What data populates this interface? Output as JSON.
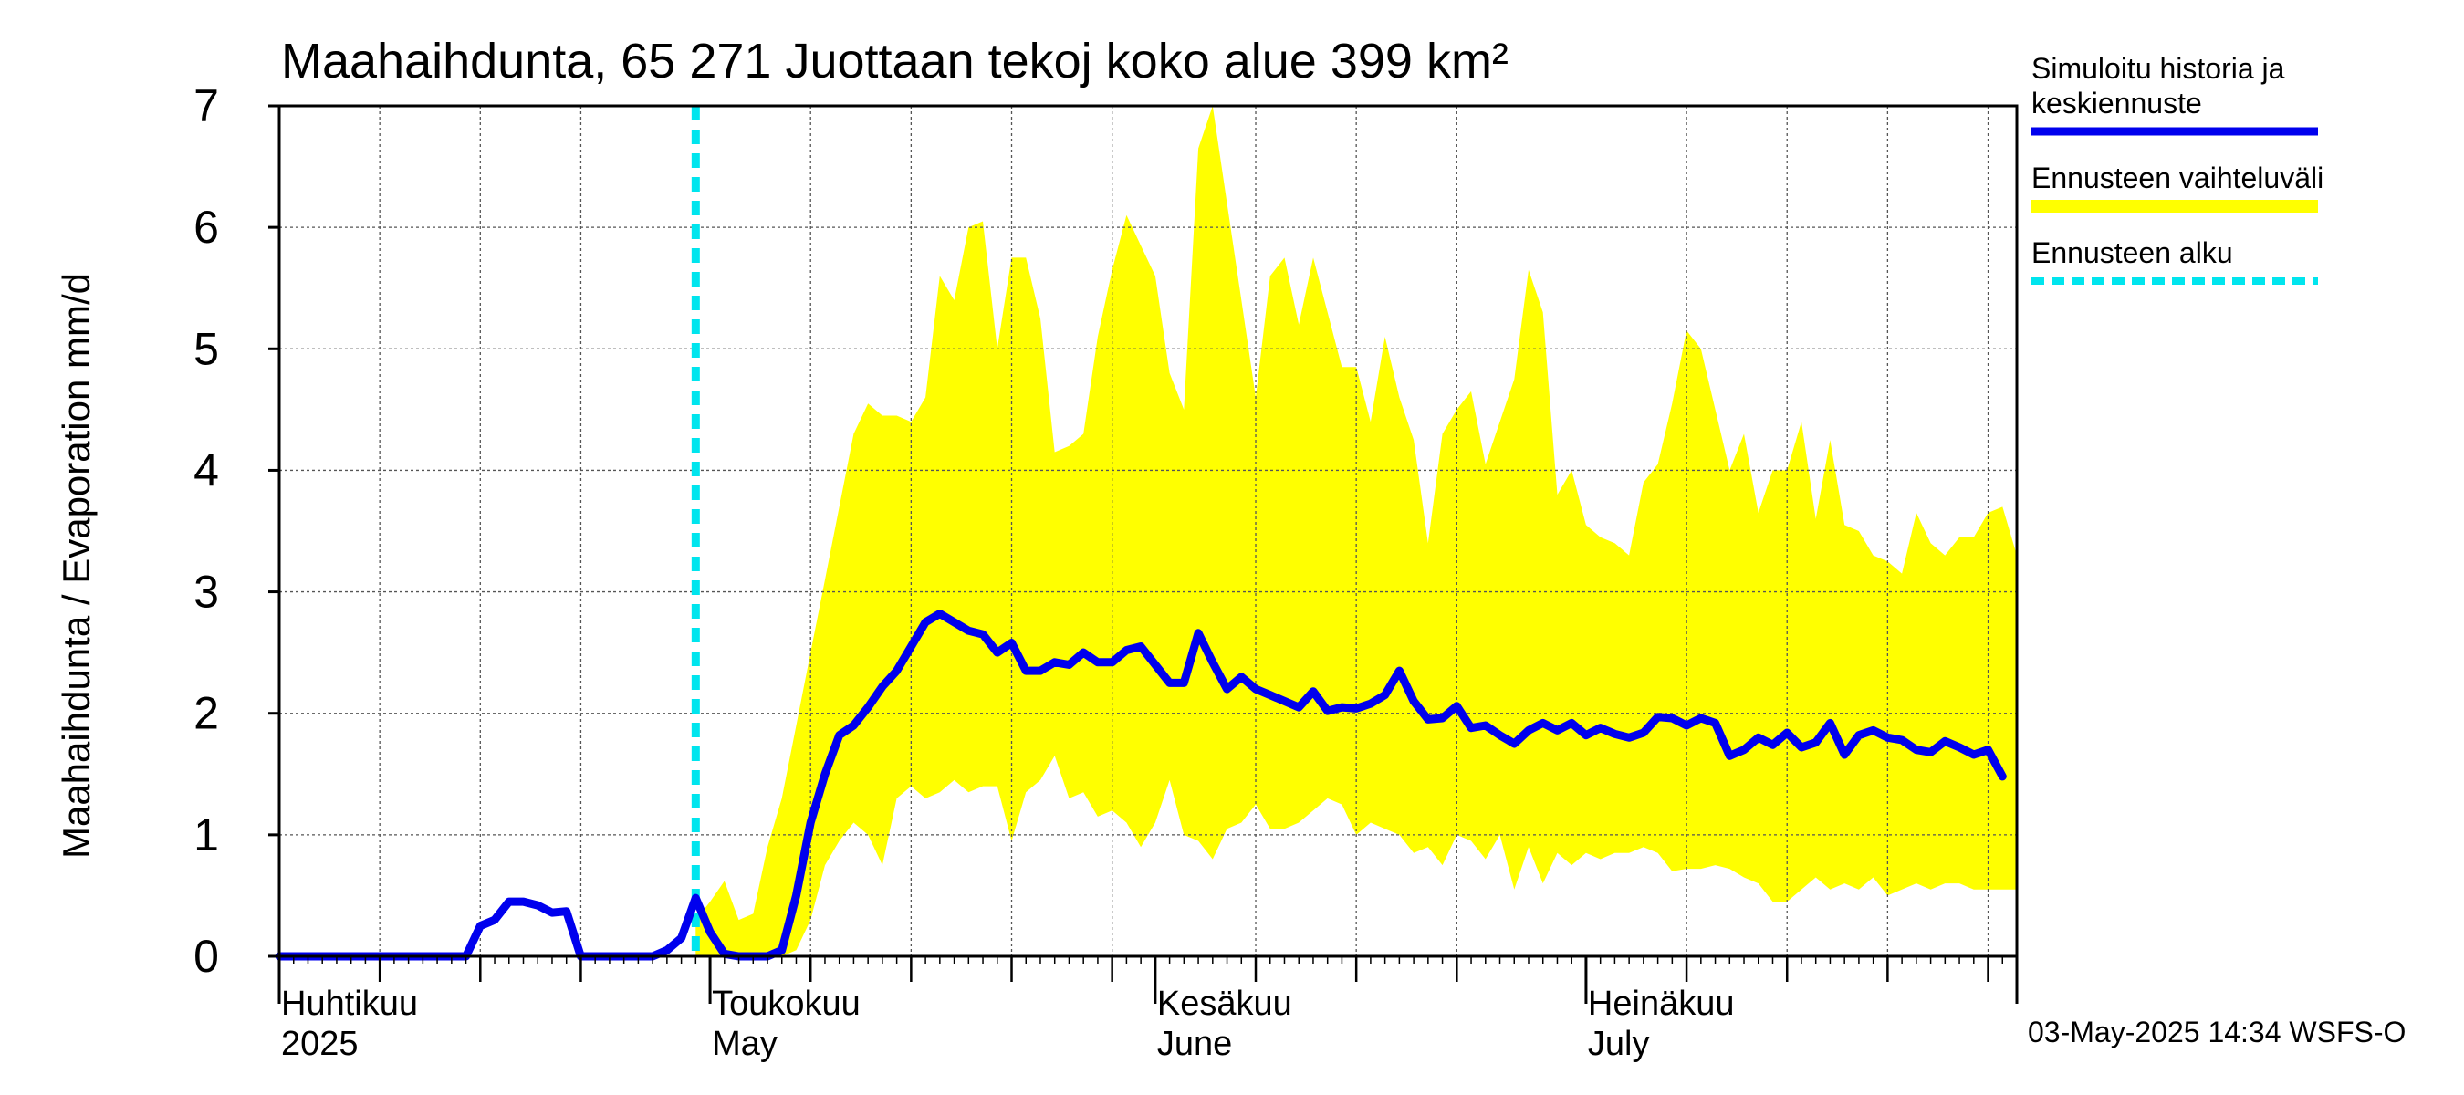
{
  "chart_data": {
    "type": "line",
    "title": "Maahaihdunta, 65 271 Juottaan tekoj koko alue 399 km²",
    "ylabel": "Maahaihdunta / Evaporation   mm/d",
    "ylim": [
      0,
      7
    ],
    "yticks": [
      0,
      1,
      2,
      3,
      4,
      5,
      6,
      7
    ],
    "grid": true,
    "x_start": "2025-04-01",
    "x_end": "2025-07-31",
    "month_labels": [
      {
        "date": "2025-04-01",
        "fi": "Huhtikuu",
        "en": "2025"
      },
      {
        "date": "2025-05-01",
        "fi": "Toukokuu",
        "en": "May"
      },
      {
        "date": "2025-06-01",
        "fi": "Kesäkuu",
        "en": "June"
      },
      {
        "date": "2025-07-01",
        "fi": "Heinäkuu",
        "en": "July"
      }
    ],
    "forecast_start": "2025-04-30",
    "legend_placement": "right",
    "legend": [
      {
        "key": "series",
        "lines": [
          "Simuloitu historia ja",
          "keskiennuste"
        ],
        "color": "#0000ee",
        "style": "solid"
      },
      {
        "key": "band",
        "lines": [
          "Ennusteen vaihteluväli"
        ],
        "color": "#ffff00",
        "style": "band"
      },
      {
        "key": "vline",
        "lines": [
          "Ennusteen alku"
        ],
        "color": "#00e5ee",
        "style": "dashed"
      }
    ],
    "series": [
      {
        "name": "Simuloitu historia ja keskiennuste",
        "color": "#0000ee",
        "points": [
          [
            "2025-04-01",
            0
          ],
          [
            "2025-04-05",
            0
          ],
          [
            "2025-04-10",
            0
          ],
          [
            "2025-04-14",
            0
          ],
          [
            "2025-04-15",
            0.25
          ],
          [
            "2025-04-16",
            0.3
          ],
          [
            "2025-04-17",
            0.45
          ],
          [
            "2025-04-18",
            0.45
          ],
          [
            "2025-04-19",
            0.42
          ],
          [
            "2025-04-20",
            0.36
          ],
          [
            "2025-04-21",
            0.37
          ],
          [
            "2025-04-22",
            0
          ],
          [
            "2025-04-24",
            0
          ],
          [
            "2025-04-27",
            0
          ],
          [
            "2025-04-28",
            0.05
          ],
          [
            "2025-04-29",
            0.15
          ],
          [
            "2025-04-30",
            0.48
          ],
          [
            "2025-05-01",
            0.2
          ],
          [
            "2025-05-02",
            0.02
          ],
          [
            "2025-05-03",
            0
          ],
          [
            "2025-05-04",
            0
          ],
          [
            "2025-05-05",
            0
          ],
          [
            "2025-05-06",
            0.05
          ],
          [
            "2025-05-07",
            0.5
          ],
          [
            "2025-05-08",
            1.1
          ],
          [
            "2025-05-09",
            1.5
          ],
          [
            "2025-05-10",
            1.82
          ],
          [
            "2025-05-11",
            1.9
          ],
          [
            "2025-05-12",
            2.05
          ],
          [
            "2025-05-13",
            2.22
          ],
          [
            "2025-05-14",
            2.35
          ],
          [
            "2025-05-15",
            2.55
          ],
          [
            "2025-05-16",
            2.75
          ],
          [
            "2025-05-17",
            2.82
          ],
          [
            "2025-05-18",
            2.75
          ],
          [
            "2025-05-19",
            2.68
          ],
          [
            "2025-05-20",
            2.65
          ],
          [
            "2025-05-21",
            2.5
          ],
          [
            "2025-05-22",
            2.58
          ],
          [
            "2025-05-23",
            2.35
          ],
          [
            "2025-05-24",
            2.35
          ],
          [
            "2025-05-25",
            2.42
          ],
          [
            "2025-05-26",
            2.4
          ],
          [
            "2025-05-27",
            2.5
          ],
          [
            "2025-05-28",
            2.42
          ],
          [
            "2025-05-29",
            2.42
          ],
          [
            "2025-05-30",
            2.52
          ],
          [
            "2025-05-31",
            2.55
          ],
          [
            "2025-06-01",
            2.4
          ],
          [
            "2025-06-02",
            2.25
          ],
          [
            "2025-06-03",
            2.25
          ],
          [
            "2025-06-04",
            2.66
          ],
          [
            "2025-06-05",
            2.42
          ],
          [
            "2025-06-06",
            2.2
          ],
          [
            "2025-06-07",
            2.3
          ],
          [
            "2025-06-08",
            2.2
          ],
          [
            "2025-06-09",
            2.15
          ],
          [
            "2025-06-10",
            2.1
          ],
          [
            "2025-06-11",
            2.05
          ],
          [
            "2025-06-12",
            2.18
          ],
          [
            "2025-06-13",
            2.02
          ],
          [
            "2025-06-14",
            2.05
          ],
          [
            "2025-06-15",
            2.04
          ],
          [
            "2025-06-16",
            2.08
          ],
          [
            "2025-06-17",
            2.15
          ],
          [
            "2025-06-18",
            2.35
          ],
          [
            "2025-06-19",
            2.1
          ],
          [
            "2025-06-20",
            1.95
          ],
          [
            "2025-06-21",
            1.96
          ],
          [
            "2025-06-22",
            2.06
          ],
          [
            "2025-06-23",
            1.88
          ],
          [
            "2025-06-24",
            1.9
          ],
          [
            "2025-06-25",
            1.82
          ],
          [
            "2025-06-26",
            1.75
          ],
          [
            "2025-06-27",
            1.86
          ],
          [
            "2025-06-28",
            1.92
          ],
          [
            "2025-06-29",
            1.86
          ],
          [
            "2025-06-30",
            1.92
          ],
          [
            "2025-07-01",
            1.82
          ],
          [
            "2025-07-02",
            1.88
          ],
          [
            "2025-07-03",
            1.83
          ],
          [
            "2025-07-04",
            1.8
          ],
          [
            "2025-07-05",
            1.84
          ],
          [
            "2025-07-06",
            1.97
          ],
          [
            "2025-07-07",
            1.96
          ],
          [
            "2025-07-08",
            1.9
          ],
          [
            "2025-07-09",
            1.96
          ],
          [
            "2025-07-10",
            1.92
          ],
          [
            "2025-07-11",
            1.65
          ],
          [
            "2025-07-12",
            1.7
          ],
          [
            "2025-07-13",
            1.8
          ],
          [
            "2025-07-14",
            1.74
          ],
          [
            "2025-07-15",
            1.84
          ],
          [
            "2025-07-16",
            1.72
          ],
          [
            "2025-07-17",
            1.76
          ],
          [
            "2025-07-18",
            1.92
          ],
          [
            "2025-07-19",
            1.66
          ],
          [
            "2025-07-20",
            1.82
          ],
          [
            "2025-07-21",
            1.86
          ],
          [
            "2025-07-22",
            1.8
          ],
          [
            "2025-07-23",
            1.78
          ],
          [
            "2025-07-24",
            1.7
          ],
          [
            "2025-07-25",
            1.68
          ],
          [
            "2025-07-26",
            1.77
          ],
          [
            "2025-07-27",
            1.72
          ],
          [
            "2025-07-28",
            1.66
          ],
          [
            "2025-07-29",
            1.7
          ],
          [
            "2025-07-30",
            1.48
          ]
        ]
      }
    ],
    "band": {
      "name": "Ennusteen vaihteluväli",
      "color": "#ffff00",
      "upper": [
        [
          "2025-04-30",
          0.3
        ],
        [
          "2025-05-01",
          0.45
        ],
        [
          "2025-05-02",
          0.62
        ],
        [
          "2025-05-03",
          0.3
        ],
        [
          "2025-05-04",
          0.35
        ],
        [
          "2025-05-05",
          0.9
        ],
        [
          "2025-05-06",
          1.3
        ],
        [
          "2025-05-07",
          1.9
        ],
        [
          "2025-05-08",
          2.5
        ],
        [
          "2025-05-09",
          3.1
        ],
        [
          "2025-05-10",
          3.7
        ],
        [
          "2025-05-11",
          4.3
        ],
        [
          "2025-05-12",
          4.55
        ],
        [
          "2025-05-13",
          4.45
        ],
        [
          "2025-05-14",
          4.45
        ],
        [
          "2025-05-15",
          4.4
        ],
        [
          "2025-05-16",
          4.6
        ],
        [
          "2025-05-17",
          5.6
        ],
        [
          "2025-05-18",
          5.4
        ],
        [
          "2025-05-19",
          6.0
        ],
        [
          "2025-05-20",
          6.05
        ],
        [
          "2025-05-21",
          5.0
        ],
        [
          "2025-05-22",
          5.75
        ],
        [
          "2025-05-23",
          5.75
        ],
        [
          "2025-05-24",
          5.25
        ],
        [
          "2025-05-25",
          4.15
        ],
        [
          "2025-05-26",
          4.2
        ],
        [
          "2025-05-27",
          4.3
        ],
        [
          "2025-05-28",
          5.1
        ],
        [
          "2025-05-29",
          5.65
        ],
        [
          "2025-05-30",
          6.1
        ],
        [
          "2025-05-31",
          5.85
        ],
        [
          "2025-06-01",
          5.6
        ],
        [
          "2025-06-02",
          4.8
        ],
        [
          "2025-06-03",
          4.5
        ],
        [
          "2025-06-04",
          6.65
        ],
        [
          "2025-06-05",
          7.0
        ],
        [
          "2025-06-06",
          6.2
        ],
        [
          "2025-06-07",
          5.4
        ],
        [
          "2025-06-08",
          4.6
        ],
        [
          "2025-06-09",
          5.6
        ],
        [
          "2025-06-10",
          5.75
        ],
        [
          "2025-06-11",
          5.2
        ],
        [
          "2025-06-12",
          5.75
        ],
        [
          "2025-06-13",
          5.3
        ],
        [
          "2025-06-14",
          4.85
        ],
        [
          "2025-06-15",
          4.85
        ],
        [
          "2025-06-16",
          4.4
        ],
        [
          "2025-06-17",
          5.1
        ],
        [
          "2025-06-18",
          4.6
        ],
        [
          "2025-06-19",
          4.25
        ],
        [
          "2025-06-20",
          3.4
        ],
        [
          "2025-06-21",
          4.3
        ],
        [
          "2025-06-22",
          4.5
        ],
        [
          "2025-06-23",
          4.65
        ],
        [
          "2025-06-24",
          4.05
        ],
        [
          "2025-06-25",
          4.4
        ],
        [
          "2025-06-26",
          4.75
        ],
        [
          "2025-06-27",
          5.65
        ],
        [
          "2025-06-28",
          5.3
        ],
        [
          "2025-06-29",
          3.8
        ],
        [
          "2025-06-30",
          4.0
        ],
        [
          "2025-07-01",
          3.55
        ],
        [
          "2025-07-02",
          3.45
        ],
        [
          "2025-07-03",
          3.4
        ],
        [
          "2025-07-04",
          3.3
        ],
        [
          "2025-07-05",
          3.9
        ],
        [
          "2025-07-06",
          4.05
        ],
        [
          "2025-07-07",
          4.55
        ],
        [
          "2025-07-08",
          5.15
        ],
        [
          "2025-07-09",
          5.0
        ],
        [
          "2025-07-10",
          4.5
        ],
        [
          "2025-07-11",
          4.0
        ],
        [
          "2025-07-12",
          4.3
        ],
        [
          "2025-07-13",
          3.65
        ],
        [
          "2025-07-14",
          4.0
        ],
        [
          "2025-07-15",
          4.0
        ],
        [
          "2025-07-16",
          4.4
        ],
        [
          "2025-07-17",
          3.6
        ],
        [
          "2025-07-18",
          4.25
        ],
        [
          "2025-07-19",
          3.55
        ],
        [
          "2025-07-20",
          3.5
        ],
        [
          "2025-07-21",
          3.3
        ],
        [
          "2025-07-22",
          3.25
        ],
        [
          "2025-07-23",
          3.15
        ],
        [
          "2025-07-24",
          3.65
        ],
        [
          "2025-07-25",
          3.4
        ],
        [
          "2025-07-26",
          3.3
        ],
        [
          "2025-07-27",
          3.45
        ],
        [
          "2025-07-28",
          3.45
        ],
        [
          "2025-07-29",
          3.65
        ],
        [
          "2025-07-30",
          3.7
        ],
        [
          "2025-07-31",
          3.3
        ]
      ],
      "lower": [
        [
          "2025-04-30",
          0
        ],
        [
          "2025-05-01",
          0
        ],
        [
          "2025-05-05",
          0
        ],
        [
          "2025-05-06",
          0
        ],
        [
          "2025-05-07",
          0.05
        ],
        [
          "2025-05-08",
          0.3
        ],
        [
          "2025-05-09",
          0.75
        ],
        [
          "2025-05-10",
          0.95
        ],
        [
          "2025-05-11",
          1.1
        ],
        [
          "2025-05-12",
          1.0
        ],
        [
          "2025-05-13",
          0.75
        ],
        [
          "2025-05-14",
          1.3
        ],
        [
          "2025-05-15",
          1.4
        ],
        [
          "2025-05-16",
          1.3
        ],
        [
          "2025-05-17",
          1.35
        ],
        [
          "2025-05-18",
          1.45
        ],
        [
          "2025-05-19",
          1.35
        ],
        [
          "2025-05-20",
          1.4
        ],
        [
          "2025-05-21",
          1.4
        ],
        [
          "2025-05-22",
          0.95
        ],
        [
          "2025-05-23",
          1.35
        ],
        [
          "2025-05-24",
          1.45
        ],
        [
          "2025-05-25",
          1.65
        ],
        [
          "2025-05-26",
          1.3
        ],
        [
          "2025-05-27",
          1.35
        ],
        [
          "2025-05-28",
          1.15
        ],
        [
          "2025-05-29",
          1.2
        ],
        [
          "2025-05-30",
          1.1
        ],
        [
          "2025-05-31",
          0.9
        ],
        [
          "2025-06-01",
          1.1
        ],
        [
          "2025-06-02",
          1.45
        ],
        [
          "2025-06-03",
          1.0
        ],
        [
          "2025-06-04",
          0.95
        ],
        [
          "2025-06-05",
          0.8
        ],
        [
          "2025-06-06",
          1.05
        ],
        [
          "2025-06-07",
          1.1
        ],
        [
          "2025-06-08",
          1.25
        ],
        [
          "2025-06-09",
          1.05
        ],
        [
          "2025-06-10",
          1.05
        ],
        [
          "2025-06-11",
          1.1
        ],
        [
          "2025-06-12",
          1.2
        ],
        [
          "2025-06-13",
          1.3
        ],
        [
          "2025-06-14",
          1.25
        ],
        [
          "2025-06-15",
          1.0
        ],
        [
          "2025-06-16",
          1.1
        ],
        [
          "2025-06-17",
          1.05
        ],
        [
          "2025-06-18",
          1.0
        ],
        [
          "2025-06-19",
          0.85
        ],
        [
          "2025-06-20",
          0.9
        ],
        [
          "2025-06-21",
          0.75
        ],
        [
          "2025-06-22",
          1.0
        ],
        [
          "2025-06-23",
          0.95
        ],
        [
          "2025-06-24",
          0.8
        ],
        [
          "2025-06-25",
          1.0
        ],
        [
          "2025-06-26",
          0.55
        ],
        [
          "2025-06-27",
          0.9
        ],
        [
          "2025-06-28",
          0.6
        ],
        [
          "2025-06-29",
          0.85
        ],
        [
          "2025-06-30",
          0.75
        ],
        [
          "2025-07-01",
          0.85
        ],
        [
          "2025-07-02",
          0.8
        ],
        [
          "2025-07-03",
          0.85
        ],
        [
          "2025-07-04",
          0.85
        ],
        [
          "2025-07-05",
          0.9
        ],
        [
          "2025-07-06",
          0.85
        ],
        [
          "2025-07-07",
          0.7
        ],
        [
          "2025-07-08",
          0.72
        ],
        [
          "2025-07-09",
          0.72
        ],
        [
          "2025-07-10",
          0.75
        ],
        [
          "2025-07-11",
          0.72
        ],
        [
          "2025-07-12",
          0.65
        ],
        [
          "2025-07-13",
          0.6
        ],
        [
          "2025-07-14",
          0.45
        ],
        [
          "2025-07-15",
          0.45
        ],
        [
          "2025-07-16",
          0.55
        ],
        [
          "2025-07-17",
          0.65
        ],
        [
          "2025-07-18",
          0.55
        ],
        [
          "2025-07-19",
          0.6
        ],
        [
          "2025-07-20",
          0.55
        ],
        [
          "2025-07-21",
          0.65
        ],
        [
          "2025-07-22",
          0.5
        ],
        [
          "2025-07-23",
          0.55
        ],
        [
          "2025-07-24",
          0.6
        ],
        [
          "2025-07-25",
          0.55
        ],
        [
          "2025-07-26",
          0.6
        ],
        [
          "2025-07-27",
          0.6
        ],
        [
          "2025-07-28",
          0.55
        ],
        [
          "2025-07-29",
          0.55
        ],
        [
          "2025-07-30",
          0.55
        ],
        [
          "2025-07-31",
          0.55
        ]
      ]
    },
    "footer_stamp": "03-May-2025 14:34 WSFS-O"
  }
}
